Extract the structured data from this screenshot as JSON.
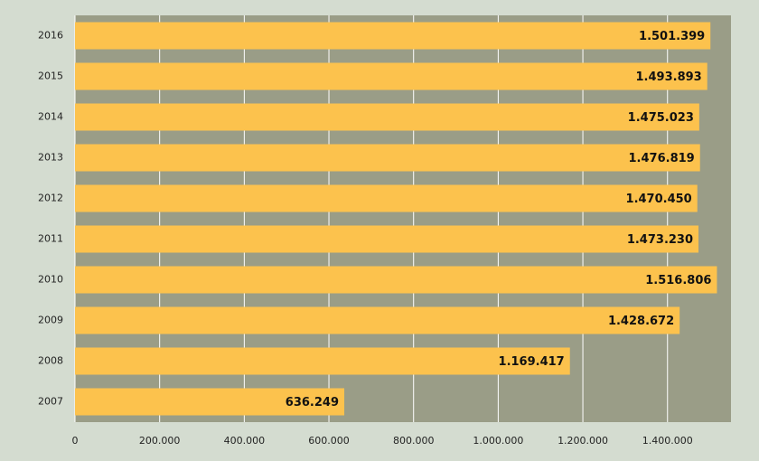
{
  "chart_data": {
    "type": "bar",
    "orientation": "horizontal",
    "categories": [
      "2016",
      "2015",
      "2014",
      "2013",
      "2012",
      "2011",
      "2010",
      "2009",
      "2008",
      "2007"
    ],
    "values": [
      1501399,
      1493893,
      1475023,
      1476819,
      1470450,
      1473230,
      1516806,
      1428672,
      1169417,
      636249
    ],
    "value_labels": [
      "1.501.399",
      "1.493.893",
      "1.475.023",
      "1.476.819",
      "1.470.450",
      "1.473.230",
      "1.516.806",
      "1.428.672",
      "1.169.417",
      "636.249"
    ],
    "color": "#fcc24d",
    "plot_background": "#9a9d87",
    "background": "#d4dcd0",
    "xlim": [
      0,
      1550000
    ],
    "xticks": [
      0,
      {
        "value": 200000,
        "label": "200.000"
      },
      {
        "value": 400000,
        "label": "400.000"
      },
      {
        "value": 600000,
        "label": "600.000"
      },
      {
        "value": 800000,
        "label": "800.000"
      },
      {
        "value": 1000000,
        "label": "1.000.000"
      },
      {
        "value": 1200000,
        "label": "1.200.000"
      },
      {
        "value": 1400000,
        "label": "1.400.000"
      }
    ],
    "grid": true
  }
}
